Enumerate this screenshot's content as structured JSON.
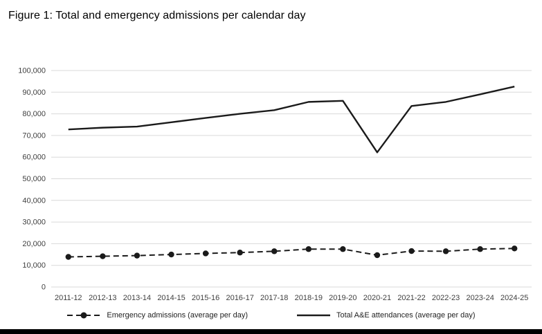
{
  "page": {
    "title": "Figure 1: Total and emergency admissions per calendar day"
  },
  "chart_data": {
    "type": "line",
    "title": "Figure 1: Total and emergency admissions per calendar day",
    "categories": [
      "2011-12",
      "2012-13",
      "2013-14",
      "2014-15",
      "2015-16",
      "2016-17",
      "2017-18",
      "2018-19",
      "2019-20",
      "2020-21",
      "2021-22",
      "2022-23",
      "2023-24",
      "2024-25"
    ],
    "series": [
      {
        "name": "Emergency admissions (average per day)",
        "style": "dashed-markers",
        "values": [
          13900,
          14200,
          14500,
          15000,
          15500,
          15900,
          16500,
          17500,
          17500,
          14700,
          16600,
          16500,
          17500,
          17800
        ]
      },
      {
        "name": "Total A&E attendances (average per day)",
        "style": "solid",
        "values": [
          72800,
          73600,
          74100,
          76100,
          78100,
          80000,
          81700,
          85500,
          86000,
          62200,
          83600,
          85500,
          89000,
          92600
        ]
      }
    ],
    "xlabel": "",
    "ylabel": "",
    "ylim": [
      0,
      100000
    ],
    "ytick_step": 10000,
    "ytick_labels": [
      "0",
      "10,000",
      "20,000",
      "30,000",
      "40,000",
      "50,000",
      "60,000",
      "70,000",
      "80,000",
      "90,000",
      "100,000"
    ],
    "grid": true,
    "gridline_color": "#d9d9d9",
    "line_color": "#1a1a1a",
    "legend_position": "bottom"
  }
}
